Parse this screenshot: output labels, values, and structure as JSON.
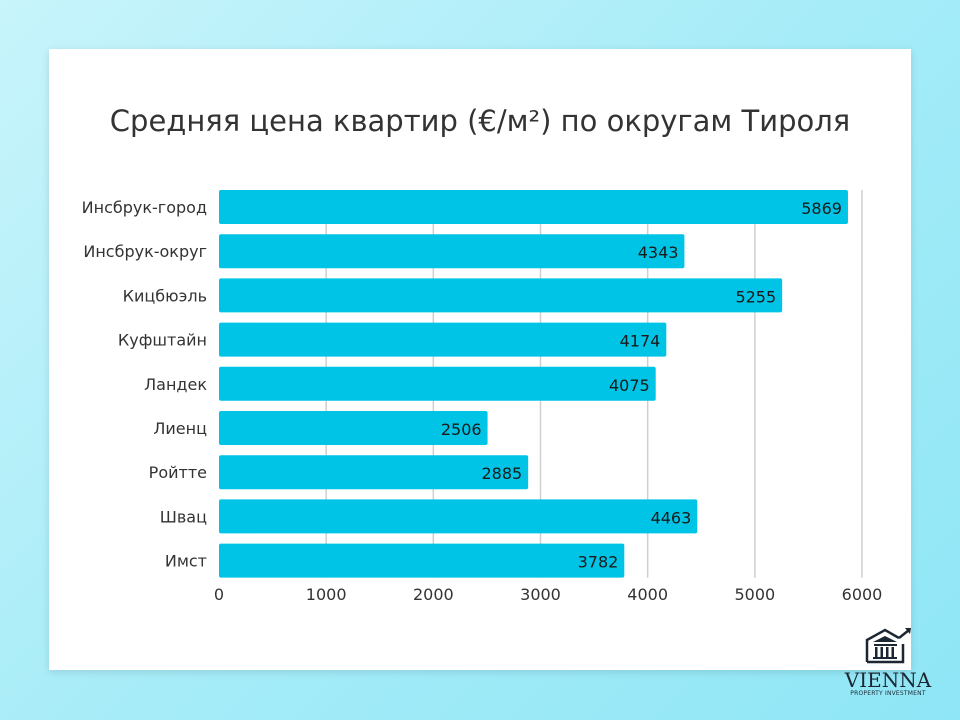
{
  "chart_data": {
    "type": "bar",
    "orientation": "horizontal",
    "title": "Средняя цена квартир (€/м²) по округам Тироля",
    "categories": [
      "Инсбрук-город",
      "Инсбрук-округ",
      "Кицбюэль",
      "Куфштайн",
      "Ландек",
      "Лиенц",
      "Ройтте",
      "Швац",
      "Имст"
    ],
    "values": [
      5869,
      4343,
      5255,
      4174,
      4075,
      2506,
      2885,
      4463,
      3782
    ],
    "xlim": [
      0,
      6000
    ],
    "xticks": [
      0,
      1000,
      2000,
      3000,
      4000,
      5000,
      6000
    ],
    "grid": true,
    "bar_color": "#00c4e6",
    "data_labels": true
  },
  "logo": {
    "name": "VIENNA",
    "tagline": "PROPERTY INVESTMENT",
    "icon": "building-chart-icon"
  }
}
